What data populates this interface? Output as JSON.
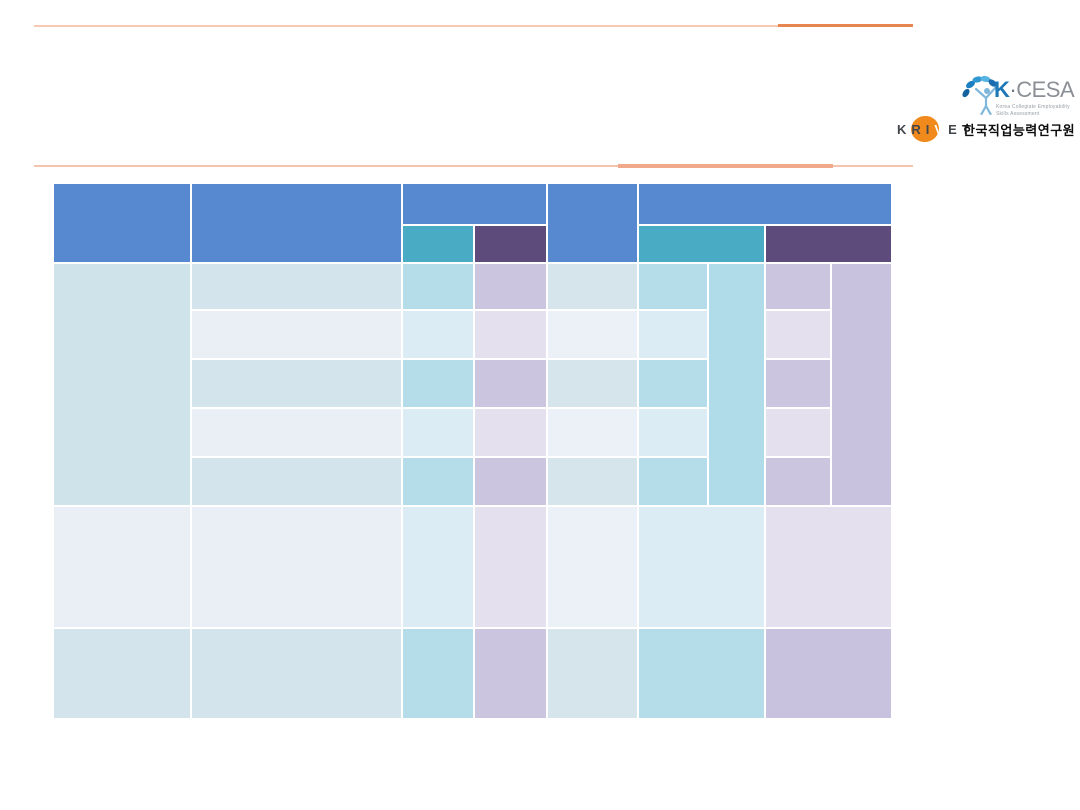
{
  "page": {
    "background": "#ffffff"
  },
  "decor": {
    "top_line": {
      "color_light": "#f6c9b5",
      "color_dark": "#e8864f"
    },
    "header_line": {
      "color_light": "#f5c4af",
      "color_thick": "#f1a98c"
    }
  },
  "logo": {
    "kcesa": {
      "title_k": "K",
      "title_sep": "·",
      "title_rest": "CESA",
      "subtitle_line1": "Korea Collegiate Employability",
      "subtitle_line2": "Skills Assessment",
      "k_color": "#1e78b8",
      "rest_color": "#8b9096",
      "petal_colors": [
        "#14639f",
        "#1b7fc0",
        "#2f97d2",
        "#57b3e2",
        "#1a6cae"
      ],
      "figure_color": "#7fb7da"
    },
    "krivet": {
      "part1": "KRI",
      "part2": "V",
      "part3": "ET",
      "oval_color": "#f18a1c",
      "org_name": "한국직업능력연구원"
    }
  },
  "table": {
    "gap": 2,
    "columns": [
      136,
      209,
      70,
      71,
      89,
      68,
      55,
      64,
      59
    ],
    "rows": [
      40,
      36,
      45,
      47,
      47,
      47,
      47,
      120,
      89
    ],
    "palette": {
      "headBlue": "#5689d0",
      "headTeal": "#49abc4",
      "headPurple": "#5d4b7b",
      "rowHead": "#cfe3ea",
      "blueA": "#d3e4ec",
      "blueB": "#e9eff5",
      "tealA": "#b4dde9",
      "tealB": "#dbecf4",
      "purpleA": "#cbc5e0",
      "purpleB": "#e5e0ee",
      "grayA": "#d6e5ec",
      "grayB": "#ebf1f6",
      "tealMerge": "#b0dce9",
      "purpleMerge": "#c9c2de"
    },
    "cells": [
      {
        "c": 1,
        "r": 1,
        "rs": 2,
        "color": "headBlue"
      },
      {
        "c": 2,
        "r": 1,
        "rs": 2,
        "color": "headBlue"
      },
      {
        "c": 3,
        "r": 1,
        "cs": 2,
        "color": "headBlue"
      },
      {
        "c": 5,
        "r": 1,
        "rs": 2,
        "color": "headBlue"
      },
      {
        "c": 6,
        "r": 1,
        "cs": 4,
        "color": "headBlue"
      },
      {
        "c": 3,
        "r": 2,
        "color": "headTeal"
      },
      {
        "c": 4,
        "r": 2,
        "color": "headPurple"
      },
      {
        "c": 6,
        "r": 2,
        "cs": 2,
        "color": "headTeal"
      },
      {
        "c": 8,
        "r": 2,
        "cs": 2,
        "color": "headPurple"
      },
      {
        "c": 1,
        "r": 3,
        "rs": 5,
        "color": "rowHead"
      },
      {
        "c": 7,
        "r": 3,
        "rs": 5,
        "color": "tealMerge"
      },
      {
        "c": 9,
        "r": 3,
        "rs": 5,
        "color": "purpleMerge"
      },
      {
        "c": 2,
        "r": 3,
        "color": "blueA"
      },
      {
        "c": 3,
        "r": 3,
        "color": "tealA"
      },
      {
        "c": 4,
        "r": 3,
        "color": "purpleA"
      },
      {
        "c": 5,
        "r": 3,
        "color": "grayA"
      },
      {
        "c": 6,
        "r": 3,
        "color": "tealA"
      },
      {
        "c": 8,
        "r": 3,
        "color": "purpleA"
      },
      {
        "c": 2,
        "r": 4,
        "color": "blueB"
      },
      {
        "c": 3,
        "r": 4,
        "color": "tealB"
      },
      {
        "c": 4,
        "r": 4,
        "color": "purpleB"
      },
      {
        "c": 5,
        "r": 4,
        "color": "grayB"
      },
      {
        "c": 6,
        "r": 4,
        "color": "tealB"
      },
      {
        "c": 8,
        "r": 4,
        "color": "purpleB"
      },
      {
        "c": 2,
        "r": 5,
        "color": "blueA"
      },
      {
        "c": 3,
        "r": 5,
        "color": "tealA"
      },
      {
        "c": 4,
        "r": 5,
        "color": "purpleA"
      },
      {
        "c": 5,
        "r": 5,
        "color": "grayA"
      },
      {
        "c": 6,
        "r": 5,
        "color": "tealA"
      },
      {
        "c": 8,
        "r": 5,
        "color": "purpleA"
      },
      {
        "c": 2,
        "r": 6,
        "color": "blueB"
      },
      {
        "c": 3,
        "r": 6,
        "color": "tealB"
      },
      {
        "c": 4,
        "r": 6,
        "color": "purpleB"
      },
      {
        "c": 5,
        "r": 6,
        "color": "grayB"
      },
      {
        "c": 6,
        "r": 6,
        "color": "tealB"
      },
      {
        "c": 8,
        "r": 6,
        "color": "purpleB"
      },
      {
        "c": 2,
        "r": 7,
        "color": "blueA"
      },
      {
        "c": 3,
        "r": 7,
        "color": "tealA"
      },
      {
        "c": 4,
        "r": 7,
        "color": "purpleA"
      },
      {
        "c": 5,
        "r": 7,
        "color": "grayA"
      },
      {
        "c": 6,
        "r": 7,
        "color": "tealA"
      },
      {
        "c": 8,
        "r": 7,
        "color": "purpleA"
      },
      {
        "c": 1,
        "r": 8,
        "color": "blueB"
      },
      {
        "c": 2,
        "r": 8,
        "color": "blueB"
      },
      {
        "c": 3,
        "r": 8,
        "color": "tealB"
      },
      {
        "c": 4,
        "r": 8,
        "color": "purpleB"
      },
      {
        "c": 5,
        "r": 8,
        "color": "grayB"
      },
      {
        "c": 6,
        "r": 8,
        "cs": 2,
        "color": "tealB"
      },
      {
        "c": 8,
        "r": 8,
        "cs": 2,
        "color": "purpleB"
      },
      {
        "c": 1,
        "r": 9,
        "color": "blueA"
      },
      {
        "c": 2,
        "r": 9,
        "color": "blueA"
      },
      {
        "c": 3,
        "r": 9,
        "color": "tealA"
      },
      {
        "c": 4,
        "r": 9,
        "color": "purpleA"
      },
      {
        "c": 5,
        "r": 9,
        "color": "grayA"
      },
      {
        "c": 6,
        "r": 9,
        "cs": 2,
        "color": "tealA"
      },
      {
        "c": 8,
        "r": 9,
        "cs": 2,
        "color": "purpleMerge"
      }
    ]
  }
}
